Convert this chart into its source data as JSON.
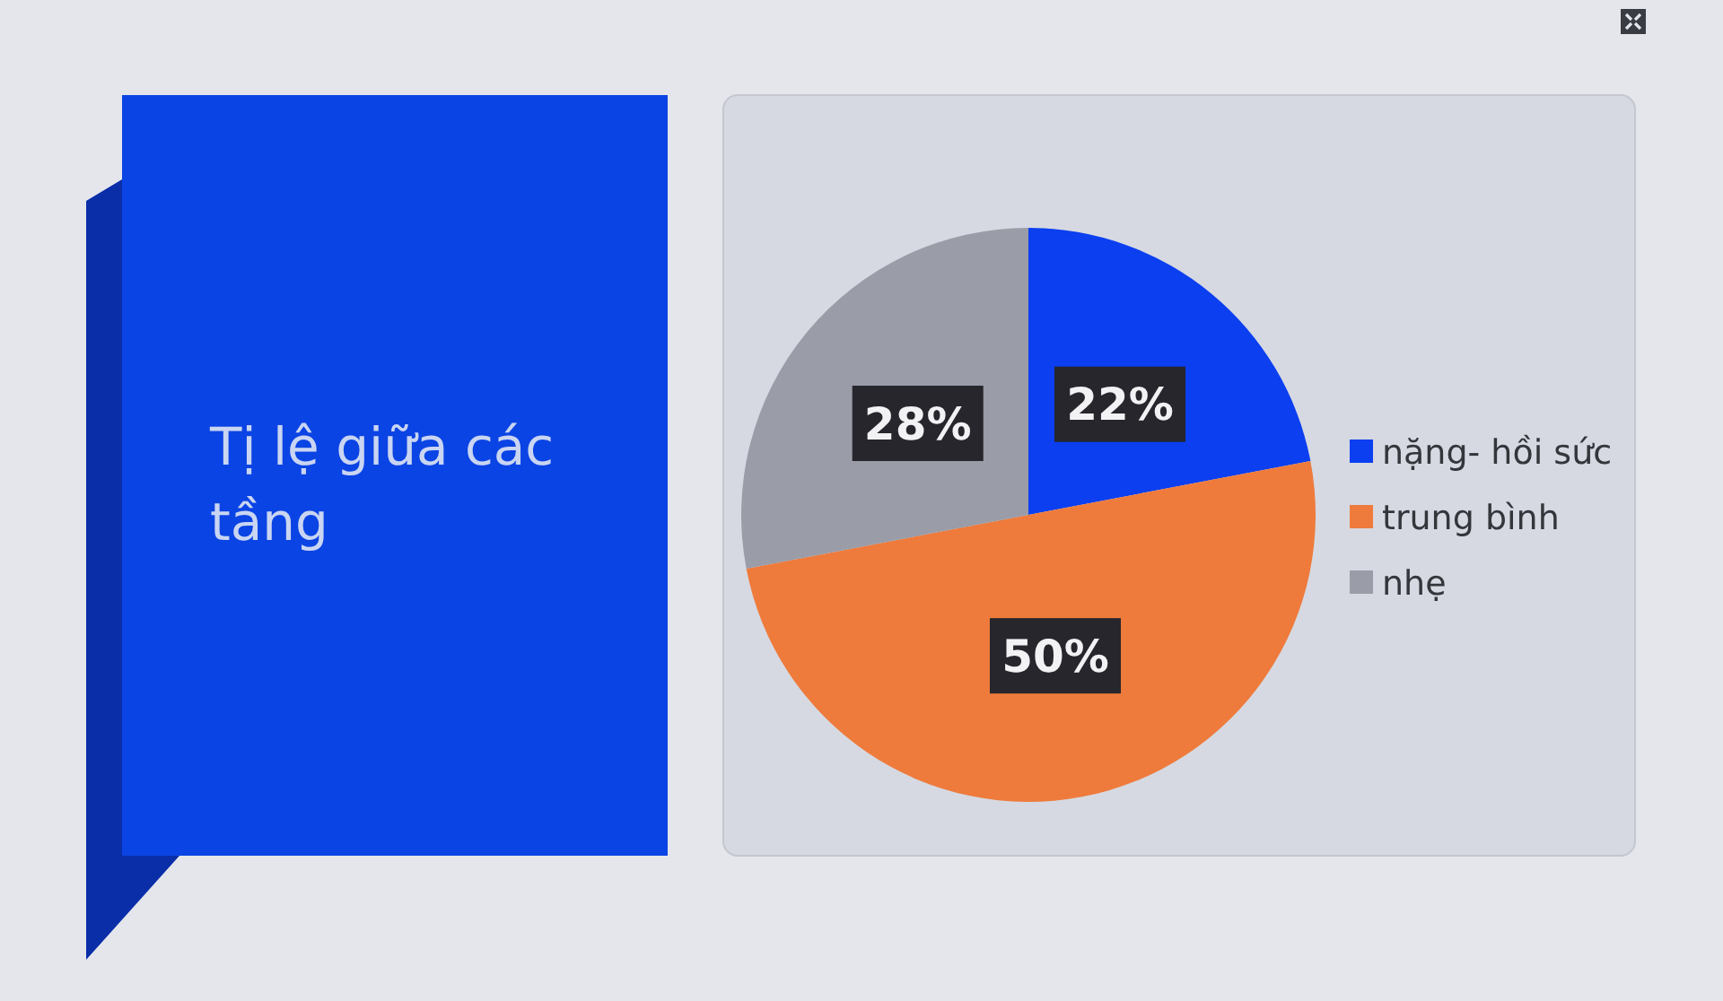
{
  "chart_data": {
    "type": "pie",
    "title": "Tị lệ giữa các tầng",
    "categories": [
      "nặng- hồi sức",
      "trung bình",
      "nhẹ"
    ],
    "values": [
      22,
      50,
      28
    ],
    "colors": [
      "#0b3ff0",
      "#ee7b3c",
      "#9a9ca8"
    ],
    "value_labels": [
      "22%",
      "50%",
      "28%"
    ],
    "legend": "right"
  }
}
